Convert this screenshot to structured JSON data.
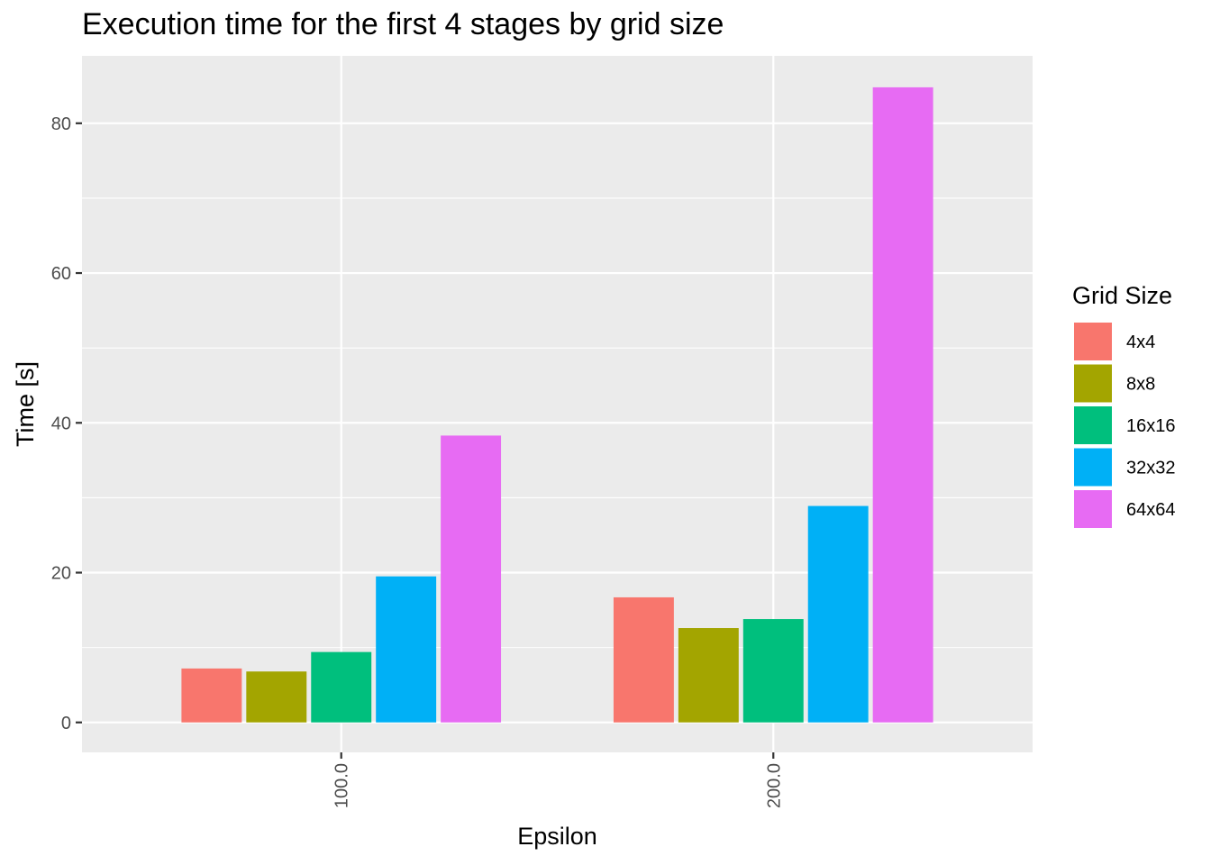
{
  "chart_data": {
    "type": "bar",
    "title": "Execution time for the first 4 stages by grid size",
    "xlabel": "Epsilon",
    "ylabel": "Time [s]",
    "categories": [
      "100.0",
      "200.0"
    ],
    "series": [
      {
        "name": "4x4",
        "values": [
          7.2,
          16.7
        ],
        "color": "#F8766D"
      },
      {
        "name": "8x8",
        "values": [
          6.8,
          12.6
        ],
        "color": "#A3A500"
      },
      {
        "name": "16x16",
        "values": [
          9.4,
          13.8
        ],
        "color": "#00BF7D"
      },
      {
        "name": "32x32",
        "values": [
          19.5,
          28.9
        ],
        "color": "#00B0F6"
      },
      {
        "name": "64x64",
        "values": [
          38.3,
          84.8
        ],
        "color": "#E76BF3"
      }
    ],
    "ylim": [
      -4,
      89
    ],
    "yticks": [
      0,
      20,
      40,
      60,
      80
    ],
    "legend": {
      "title": "Grid Size",
      "position": "right"
    },
    "grid": true,
    "panel_background": "#EBEBEB"
  }
}
